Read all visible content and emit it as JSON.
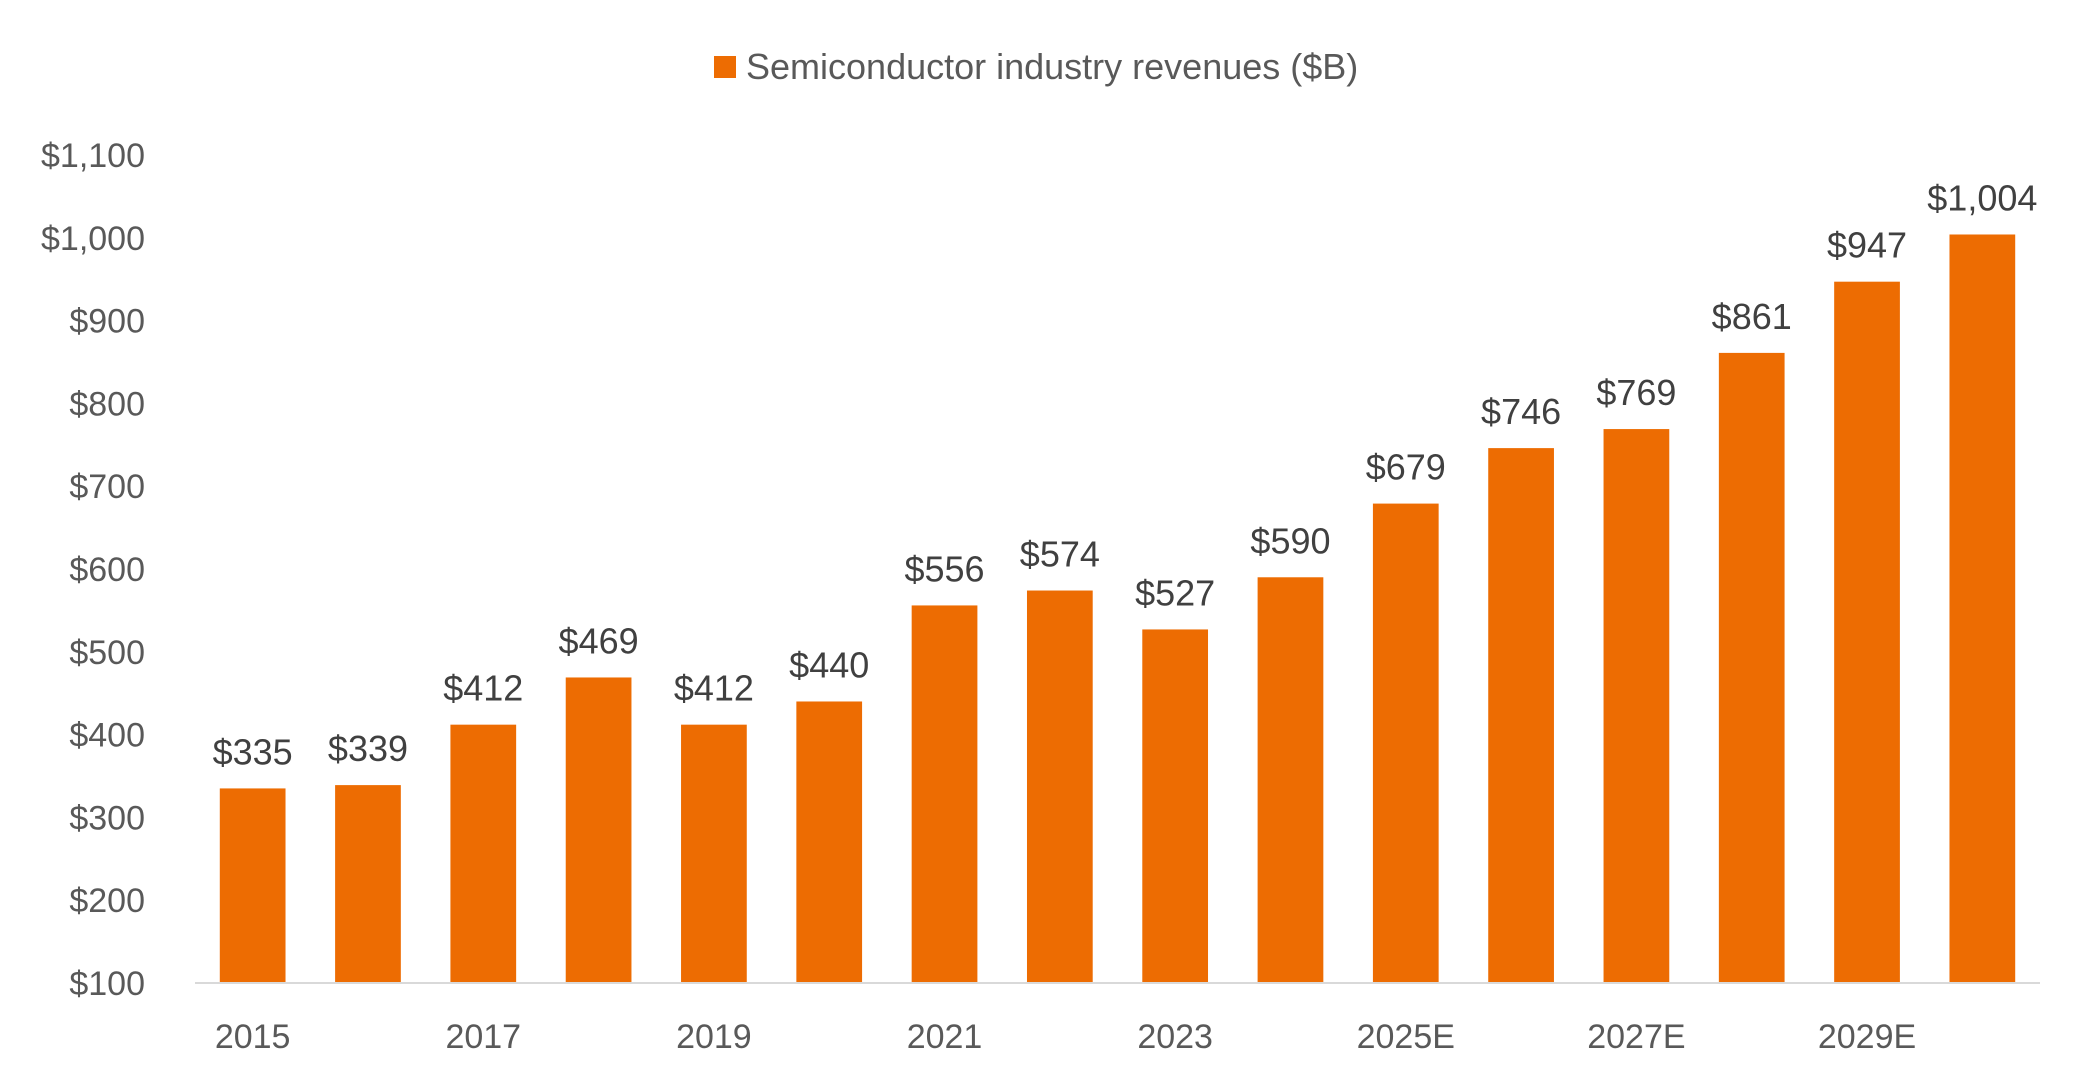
{
  "chart_data": {
    "type": "bar",
    "categories": [
      "2015",
      "2016",
      "2017",
      "2018",
      "2019",
      "2020",
      "2021",
      "2022",
      "2023",
      "2024",
      "2025E",
      "2026E",
      "2027E",
      "2028E",
      "2029E",
      "2030E"
    ],
    "x_tick_labels": [
      "2015",
      "",
      "2017",
      "",
      "2019",
      "",
      "2021",
      "",
      "2023",
      "",
      "2025E",
      "",
      "2027E",
      "",
      "2029E",
      ""
    ],
    "series": [
      {
        "name": "Semiconductor industry revenues ($B)",
        "values": [
          335,
          339,
          412,
          469,
          412,
          440,
          556,
          574,
          527,
          590,
          679,
          746,
          769,
          861,
          947,
          1004
        ],
        "data_labels": [
          "$335",
          "$339",
          "$412",
          "$469",
          "$412",
          "$440",
          "$556",
          "$574",
          "$527",
          "$590",
          "$679",
          "$746",
          "$769",
          "$861",
          "$947",
          "$1,004"
        ]
      }
    ],
    "title": "",
    "xlabel": "",
    "ylabel": "",
    "ylim": [
      100,
      1100
    ],
    "yticks": [
      100,
      200,
      300,
      400,
      500,
      600,
      700,
      800,
      900,
      1000,
      1100
    ],
    "ytick_labels": [
      "$100",
      "$200",
      "$300",
      "$400",
      "$500",
      "$600",
      "$700",
      "$800",
      "$900",
      "$1,000",
      "$1,100"
    ],
    "grid": false,
    "legend_position": "top-center",
    "colors": {
      "bar": "#ED6C02",
      "axis": "#D9D9D9",
      "tick_text": "#595959",
      "label_text": "#404040"
    }
  }
}
